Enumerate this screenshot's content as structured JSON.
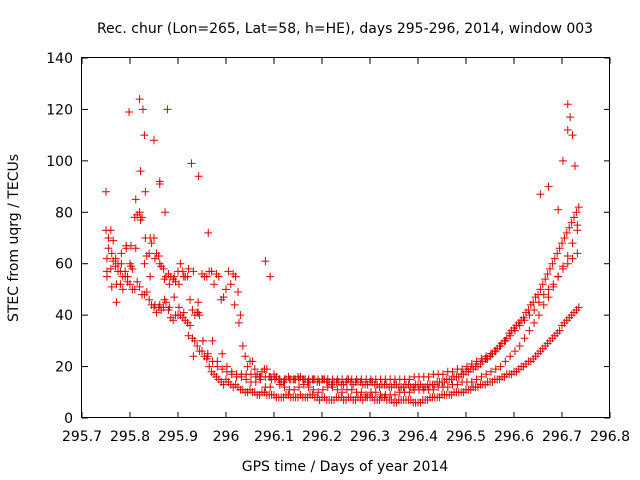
{
  "chart_data": {
    "type": "scatter",
    "title": "Rec. chur (Lon=265, Lat=58, h=HE), days 295-296, 2014, window 003",
    "xlabel": "GPS time / Days of year 2014",
    "ylabel": "STEC from uqrg / TECUs",
    "xlim": [
      295.7,
      296.8
    ],
    "ylim": [
      0,
      140
    ],
    "x_ticks": [
      295.7,
      295.8,
      295.9,
      296.0,
      296.1,
      296.2,
      296.3,
      296.4,
      296.5,
      296.6,
      296.7,
      296.8
    ],
    "x_tick_labels": [
      "295.7",
      "295.8",
      "295.9",
      "296",
      "296.1",
      "296.2",
      "296.3",
      "296.4",
      "296.5",
      "296.6",
      "296.7",
      "296.8"
    ],
    "y_ticks": [
      0,
      20,
      40,
      60,
      80,
      100,
      120,
      140
    ],
    "y_tick_labels": [
      "0",
      "20",
      "40",
      "60",
      "80",
      "100",
      "120",
      "140"
    ],
    "grid": false,
    "marker": "+",
    "color": "#e00000",
    "x": [
      295.75,
      295.755,
      295.76,
      295.765,
      295.77,
      295.775,
      295.78,
      295.785,
      295.79,
      295.795,
      295.8,
      295.805,
      295.81,
      295.815,
      295.82,
      295.825,
      295.83,
      295.835,
      295.84,
      295.845,
      295.85,
      295.855,
      295.86,
      295.865,
      295.87,
      295.875,
      295.88,
      295.885,
      295.89,
      295.895,
      295.9,
      295.905,
      295.91,
      295.915,
      295.92,
      295.925,
      295.93,
      295.935,
      295.94,
      295.945,
      295.95,
      295.955,
      295.96,
      295.965,
      295.97,
      295.975,
      295.98,
      295.985,
      295.99,
      295.995,
      296.0,
      296.005,
      296.01,
      296.015,
      296.02,
      296.025,
      296.03,
      296.035,
      296.04,
      296.045,
      296.05,
      296.055,
      296.06,
      296.065,
      296.07,
      296.075,
      296.08,
      296.085,
      296.09,
      296.095,
      296.1,
      296.105,
      296.11,
      296.115,
      296.12,
      296.125,
      296.13,
      296.135,
      296.14,
      296.145,
      296.15,
      296.155,
      296.16,
      296.165,
      296.17,
      296.175,
      296.18,
      296.185,
      296.19,
      296.195,
      296.2,
      296.205,
      296.21,
      296.215,
      296.22,
      296.225,
      296.23,
      296.235,
      296.24,
      296.245,
      296.25,
      296.255,
      296.26,
      296.265,
      296.27,
      296.275,
      296.28,
      296.285,
      296.29,
      296.295,
      296.3,
      296.305,
      296.31,
      296.315,
      296.32,
      296.325,
      296.33,
      296.335,
      296.34,
      296.345,
      296.35,
      296.355,
      296.36,
      296.365,
      296.37,
      296.375,
      296.38,
      296.385,
      296.39,
      296.395,
      296.4,
      296.405,
      296.41,
      296.415,
      296.42,
      296.425,
      296.43,
      296.435,
      296.44,
      296.445,
      296.45,
      296.455,
      296.46,
      296.465,
      296.47,
      296.475,
      296.48,
      296.485,
      296.49,
      296.495,
      296.5,
      296.505,
      296.51,
      296.515,
      296.52,
      296.525,
      296.53,
      296.535,
      296.54,
      296.545,
      296.55,
      296.555,
      296.56,
      296.565,
      296.57,
      296.575,
      296.58,
      296.585,
      296.59,
      296.595,
      296.6,
      296.605,
      296.61,
      296.615,
      296.62,
      296.625,
      296.63,
      296.635,
      296.64,
      296.645,
      296.65,
      296.655,
      296.66,
      296.665,
      296.67,
      296.675,
      296.68,
      296.685,
      296.69,
      296.695,
      296.7,
      296.705,
      296.71,
      296.715,
      296.72,
      296.725,
      296.73,
      296.735,
      295.75,
      295.755,
      295.76,
      295.765,
      295.77,
      295.775,
      295.78,
      295.785,
      295.79,
      295.795,
      295.8,
      295.805,
      295.81,
      295.815,
      295.82,
      295.825,
      295.83,
      295.835,
      295.84,
      295.845,
      295.85,
      295.855,
      295.86,
      295.865,
      295.87,
      295.875,
      295.88,
      295.885,
      295.89,
      295.895,
      295.9,
      295.905,
      295.91,
      295.915,
      295.92,
      295.925,
      295.93,
      295.935,
      295.94,
      295.945,
      295.95,
      295.955,
      295.96,
      295.965,
      295.97,
      295.975,
      295.98,
      295.985,
      295.99,
      295.995,
      296.0,
      296.005,
      296.01,
      296.015,
      296.02,
      296.025,
      296.03,
      296.035,
      296.04,
      296.045,
      296.05,
      296.055,
      296.06,
      296.065,
      296.07,
      296.075,
      296.08,
      296.085,
      296.09,
      296.095,
      296.1,
      296.105,
      296.11,
      296.115,
      296.12,
      296.125,
      296.13,
      296.135,
      296.14,
      296.145,
      296.15,
      296.155,
      296.16,
      296.165,
      296.17,
      296.175,
      296.18,
      296.185,
      296.19,
      296.195,
      296.2,
      296.205,
      296.21,
      296.215,
      296.22,
      296.225,
      296.23,
      296.235,
      296.24,
      296.245,
      296.25,
      296.255,
      296.26,
      296.265,
      296.27,
      296.275,
      296.28,
      296.285,
      296.29,
      296.295,
      296.3,
      296.305,
      296.31,
      296.315,
      296.32,
      296.325,
      296.33,
      296.335,
      296.34,
      296.345,
      296.35,
      296.355,
      296.36,
      296.365,
      296.37,
      296.375,
      296.38,
      296.385,
      296.39,
      296.395,
      296.4,
      296.405,
      296.41,
      296.415,
      296.42,
      296.425,
      296.43,
      296.435,
      296.44,
      296.445,
      296.45,
      296.455,
      296.46,
      296.465,
      296.47,
      296.475,
      296.48,
      296.485,
      296.49,
      296.495,
      296.5,
      296.505,
      296.51,
      296.515,
      296.52,
      296.525,
      296.53,
      296.535,
      296.54,
      296.545,
      296.55,
      296.555,
      296.56,
      296.565,
      296.57,
      296.575,
      296.58,
      296.585,
      296.59,
      296.595,
      296.6,
      296.605,
      296.61,
      296.615,
      296.62,
      296.625,
      296.63,
      296.635,
      296.64,
      296.645,
      296.65,
      296.655,
      296.66,
      296.665,
      296.67,
      296.675,
      296.68,
      296.685,
      296.69,
      296.695,
      296.7,
      296.705,
      296.71,
      296.715,
      296.72,
      296.725,
      296.73,
      296.735,
      295.752,
      295.762,
      295.772,
      295.782,
      295.792,
      295.802,
      295.812,
      295.822,
      295.832,
      295.842,
      295.852,
      295.862,
      295.872,
      295.882,
      295.892,
      295.902,
      295.912,
      295.922,
      295.932,
      295.942,
      295.952,
      295.962,
      295.972,
      295.982,
      295.992,
      296.002,
      296.012,
      296.022,
      296.032,
      296.042,
      296.052,
      296.062,
      296.072,
      296.082,
      296.092,
      296.102,
      296.112,
      296.122,
      296.132,
      296.142,
      296.152,
      296.162,
      296.172,
      296.182,
      296.192,
      296.202,
      296.212,
      296.222,
      296.232,
      296.242,
      296.252,
      296.262,
      296.272,
      296.282,
      296.292,
      296.302,
      296.312,
      296.322,
      296.332,
      296.342,
      296.352,
      296.362,
      296.372,
      296.382,
      296.392,
      296.402,
      296.412,
      296.422,
      296.432,
      296.442,
      296.452,
      296.462,
      296.472,
      296.482,
      296.492,
      296.502,
      296.512,
      296.522,
      296.532,
      296.542,
      296.552,
      296.562,
      296.572,
      296.582,
      296.592,
      296.602,
      296.612,
      296.622,
      296.632,
      296.642,
      296.652,
      296.662,
      296.672,
      296.682,
      296.692,
      296.702,
      296.712,
      296.722,
      296.732,
      295.752,
      295.762,
      295.772,
      295.782,
      295.792,
      295.802,
      295.812,
      295.822,
      295.832,
      295.842,
      295.852,
      295.862,
      295.872,
      295.882,
      295.892,
      295.902,
      295.912,
      295.922,
      295.932,
      295.942,
      295.952,
      295.962,
      295.972,
      295.982,
      295.992,
      296.002,
      296.012,
      296.022,
      296.032,
      296.042,
      296.052,
      296.062,
      296.072,
      296.082,
      296.092,
      296.102,
      296.112,
      296.122,
      296.132,
      296.142,
      296.152,
      296.162,
      296.172,
      296.182,
      296.192,
      296.202,
      296.212,
      296.222,
      296.232,
      296.242,
      296.252,
      296.262,
      296.272,
      296.282,
      296.292,
      296.302,
      296.312,
      296.322,
      296.332,
      296.342,
      296.352,
      296.362,
      296.372,
      296.382,
      296.392,
      296.402,
      296.412,
      296.422,
      296.432,
      296.442,
      296.452,
      296.462,
      296.472,
      296.482,
      296.492,
      296.502,
      296.512,
      296.522,
      296.532,
      296.542,
      296.552,
      296.562,
      296.572,
      296.582,
      296.592,
      296.602,
      296.612,
      296.622,
      296.632,
      296.642,
      296.652,
      296.662,
      296.672,
      296.682,
      296.692,
      296.702,
      296.712,
      296.722,
      296.732,
      295.798,
      295.82,
      295.827,
      295.862,
      295.878,
      295.83,
      295.85,
      295.752,
      295.928,
      295.862,
      295.873,
      295.943,
      295.963,
      296.018,
      296.027,
      296.082,
      296.092,
      296.542,
      296.655,
      296.672,
      296.702,
      296.712,
      296.717,
      296.727,
      296.692,
      296.732,
      296.712,
      296.722
    ],
    "y": [
      88,
      70,
      73,
      69,
      62,
      57,
      52,
      50,
      55,
      53,
      52,
      50,
      50,
      53,
      51,
      48,
      48,
      49,
      46,
      44,
      43,
      41,
      43,
      42,
      43,
      45,
      42,
      39,
      38,
      40,
      40,
      40,
      39,
      38,
      37,
      36,
      31,
      30,
      28,
      26,
      26,
      24,
      23,
      20,
      18,
      17,
      16,
      15,
      14,
      13,
      15,
      14,
      13,
      12,
      13,
      12,
      11,
      11,
      10,
      10,
      11,
      10,
      10,
      9,
      9,
      10,
      10,
      9,
      9,
      9,
      9,
      8,
      8,
      8,
      8,
      9,
      9,
      8,
      8,
      8,
      8,
      9,
      8,
      8,
      8,
      9,
      9,
      8,
      8,
      7,
      8,
      8,
      7,
      7,
      7,
      7,
      8,
      8,
      8,
      7,
      7,
      8,
      8,
      7,
      7,
      8,
      8,
      7,
      8,
      8,
      8,
      8,
      7,
      7,
      7,
      8,
      8,
      7,
      7,
      7,
      6,
      6,
      7,
      7,
      7,
      7,
      7,
      7,
      6,
      6,
      6,
      6,
      7,
      7,
      7,
      8,
      8,
      8,
      8,
      8,
      9,
      9,
      9,
      9,
      9,
      10,
      10,
      10,
      10,
      10,
      11,
      11,
      11,
      12,
      12,
      12,
      13,
      13,
      13,
      14,
      14,
      14,
      15,
      15,
      15,
      16,
      16,
      17,
      17,
      17,
      18,
      18,
      19,
      20,
      20,
      21,
      22,
      22,
      23,
      24,
      25,
      26,
      27,
      28,
      29,
      30,
      31,
      32,
      33,
      34,
      36,
      37,
      38,
      39,
      40,
      41,
      42,
      43,
      73,
      66,
      58,
      61,
      59,
      60,
      57,
      55,
      57,
      55,
      60,
      58,
      78,
      79,
      80,
      78,
      60,
      63,
      64,
      68,
      70,
      64,
      63,
      59,
      58,
      55,
      56,
      55,
      54,
      53,
      57,
      60,
      57,
      55,
      55,
      46,
      42,
      40,
      41,
      40,
      56,
      55,
      55,
      57,
      57,
      52,
      56,
      55,
      46,
      47,
      50,
      57,
      52,
      56,
      55,
      49,
      40,
      28,
      24,
      20,
      22,
      22,
      19,
      17,
      16,
      18,
      19,
      19,
      16,
      15,
      17,
      16,
      15,
      14,
      14,
      15,
      16,
      15,
      15,
      15,
      16,
      16,
      15,
      15,
      14,
      14,
      15,
      15,
      14,
      14,
      15,
      15,
      14,
      14,
      13,
      14,
      14,
      14,
      13,
      13,
      14,
      15,
      14,
      13,
      14,
      14,
      14,
      13,
      13,
      13,
      14,
      14,
      13,
      13,
      12,
      13,
      13,
      13,
      12,
      12,
      13,
      13,
      12,
      12,
      12,
      13,
      13,
      12,
      12,
      13,
      13,
      13,
      12,
      12,
      13,
      13,
      13,
      13,
      14,
      14,
      14,
      14,
      15,
      15,
      15,
      16,
      16,
      16,
      17,
      17,
      18,
      18,
      19,
      19,
      20,
      20,
      21,
      22,
      23,
      23,
      24,
      25,
      26,
      27,
      28,
      29,
      30,
      31,
      33,
      34,
      35,
      36,
      37,
      38,
      39,
      41,
      42,
      44,
      45,
      47,
      48,
      50,
      52,
      54,
      56,
      58,
      60,
      62,
      64,
      66,
      68,
      70,
      72,
      74,
      76,
      78,
      80,
      82,
      55,
      51,
      45,
      60,
      67,
      67,
      66,
      77,
      70,
      55,
      44,
      44,
      46,
      43,
      47,
      43,
      41,
      32,
      24,
      41,
      30,
      24,
      30,
      22,
      25,
      18,
      17,
      16,
      16,
      15,
      14,
      14,
      15,
      12,
      12,
      15,
      13,
      12,
      11,
      11,
      12,
      13,
      12,
      11,
      10,
      11,
      12,
      12,
      11,
      10,
      11,
      11,
      10,
      10,
      9,
      10,
      10,
      9,
      9,
      9,
      9,
      10,
      10,
      10,
      11,
      11,
      11,
      11,
      11,
      12,
      12,
      12,
      13,
      13,
      14,
      14,
      14,
      15,
      16,
      17,
      18,
      19,
      20,
      22,
      24,
      26,
      28,
      31,
      34,
      37,
      40,
      44,
      47,
      51,
      55,
      59,
      63,
      68,
      73,
      62,
      64,
      52,
      64,
      66,
      59,
      85,
      96,
      88,
      70,
      62,
      60,
      54,
      52,
      55,
      52,
      55,
      58,
      57,
      45,
      30,
      25,
      22,
      20,
      19,
      20,
      18,
      17,
      17,
      17,
      17,
      16,
      16,
      16,
      16,
      15,
      15,
      15,
      15,
      15,
      15,
      15,
      15,
      15,
      15,
      15,
      15,
      15,
      15,
      15,
      15,
      15,
      15,
      15,
      15,
      15,
      15,
      15,
      15,
      15,
      15,
      15,
      15,
      15,
      16,
      16,
      16,
      16,
      17,
      17,
      17,
      18,
      18,
      19,
      19,
      20,
      21,
      22,
      23,
      24,
      25,
      26,
      28,
      30,
      32,
      34,
      36,
      38,
      40,
      42,
      45,
      48,
      50,
      52,
      55,
      58,
      60,
      62,
      64,
      119,
      124,
      120,
      91,
      120,
      110,
      108,
      57,
      99,
      92,
      80,
      94,
      72,
      44,
      37,
      61,
      55,
      23,
      87,
      90,
      100,
      122,
      117,
      98,
      81,
      75,
      112,
      110
    ]
  }
}
